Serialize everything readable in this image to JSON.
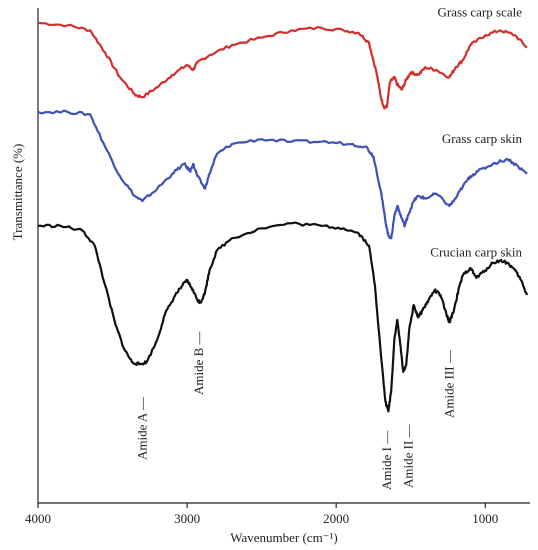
{
  "chart_data": {
    "type": "line",
    "title": "",
    "xlabel": "Wavenumber (cm⁻¹)",
    "ylabel": "Transmittance (%)",
    "xlim": [
      4000,
      700
    ],
    "x_reversed": true,
    "xticks": [
      4000,
      3000,
      2000,
      1000
    ],
    "grid": false,
    "legend": "labels placed at right end of each trace",
    "y_units": "relative transmittance, offset per trace, no numeric scale shown",
    "series": [
      {
        "name": "Grass carp scale",
        "color": "#d32f2f",
        "points": [
          [
            4000,
            0.97
          ],
          [
            3800,
            0.965
          ],
          [
            3650,
            0.955
          ],
          [
            3550,
            0.91
          ],
          [
            3450,
            0.86
          ],
          [
            3350,
            0.825
          ],
          [
            3300,
            0.82
          ],
          [
            3200,
            0.84
          ],
          [
            3100,
            0.865
          ],
          [
            3000,
            0.885
          ],
          [
            2960,
            0.875
          ],
          [
            2930,
            0.89
          ],
          [
            2850,
            0.905
          ],
          [
            2700,
            0.925
          ],
          [
            2500,
            0.94
          ],
          [
            2300,
            0.955
          ],
          [
            2100,
            0.96
          ],
          [
            1950,
            0.955
          ],
          [
            1850,
            0.95
          ],
          [
            1780,
            0.93
          ],
          [
            1730,
            0.87
          ],
          [
            1700,
            0.82
          ],
          [
            1680,
            0.8
          ],
          [
            1660,
            0.8
          ],
          [
            1640,
            0.85
          ],
          [
            1610,
            0.86
          ],
          [
            1590,
            0.845
          ],
          [
            1560,
            0.835
          ],
          [
            1530,
            0.855
          ],
          [
            1500,
            0.87
          ],
          [
            1450,
            0.865
          ],
          [
            1400,
            0.88
          ],
          [
            1330,
            0.875
          ],
          [
            1240,
            0.86
          ],
          [
            1200,
            0.88
          ],
          [
            1150,
            0.895
          ],
          [
            1100,
            0.925
          ],
          [
            1000,
            0.945
          ],
          [
            900,
            0.955
          ],
          [
            800,
            0.945
          ],
          [
            720,
            0.92
          ]
        ]
      },
      {
        "name": "Grass carp skin",
        "color": "#3f51b5",
        "points": [
          [
            4000,
            0.79
          ],
          [
            3800,
            0.79
          ],
          [
            3650,
            0.785
          ],
          [
            3550,
            0.72
          ],
          [
            3450,
            0.66
          ],
          [
            3350,
            0.62
          ],
          [
            3300,
            0.61
          ],
          [
            3200,
            0.635
          ],
          [
            3100,
            0.665
          ],
          [
            3020,
            0.685
          ],
          [
            2980,
            0.67
          ],
          [
            2960,
            0.685
          ],
          [
            2930,
            0.66
          ],
          [
            2880,
            0.635
          ],
          [
            2850,
            0.665
          ],
          [
            2800,
            0.705
          ],
          [
            2700,
            0.725
          ],
          [
            2500,
            0.735
          ],
          [
            2300,
            0.73
          ],
          [
            2100,
            0.73
          ],
          [
            1900,
            0.725
          ],
          [
            1800,
            0.72
          ],
          [
            1750,
            0.7
          ],
          [
            1700,
            0.63
          ],
          [
            1670,
            0.57
          ],
          [
            1650,
            0.54
          ],
          [
            1630,
            0.535
          ],
          [
            1610,
            0.58
          ],
          [
            1590,
            0.6
          ],
          [
            1560,
            0.575
          ],
          [
            1540,
            0.56
          ],
          [
            1520,
            0.58
          ],
          [
            1480,
            0.61
          ],
          [
            1450,
            0.62
          ],
          [
            1400,
            0.615
          ],
          [
            1330,
            0.625
          ],
          [
            1240,
            0.6
          ],
          [
            1200,
            0.615
          ],
          [
            1150,
            0.64
          ],
          [
            1100,
            0.66
          ],
          [
            1050,
            0.67
          ],
          [
            950,
            0.685
          ],
          [
            850,
            0.695
          ],
          [
            780,
            0.68
          ],
          [
            720,
            0.665
          ]
        ]
      },
      {
        "name": "Crucian carp skin",
        "color": "#111111",
        "points": [
          [
            4000,
            0.56
          ],
          [
            3850,
            0.56
          ],
          [
            3700,
            0.55
          ],
          [
            3620,
            0.52
          ],
          [
            3550,
            0.44
          ],
          [
            3480,
            0.36
          ],
          [
            3420,
            0.31
          ],
          [
            3370,
            0.285
          ],
          [
            3320,
            0.28
          ],
          [
            3270,
            0.285
          ],
          [
            3200,
            0.33
          ],
          [
            3150,
            0.38
          ],
          [
            3080,
            0.42
          ],
          [
            3030,
            0.44
          ],
          [
            3000,
            0.45
          ],
          [
            2970,
            0.435
          ],
          [
            2930,
            0.41
          ],
          [
            2910,
            0.405
          ],
          [
            2880,
            0.425
          ],
          [
            2850,
            0.47
          ],
          [
            2800,
            0.51
          ],
          [
            2700,
            0.535
          ],
          [
            2500,
            0.555
          ],
          [
            2300,
            0.565
          ],
          [
            2100,
            0.56
          ],
          [
            1950,
            0.555
          ],
          [
            1850,
            0.545
          ],
          [
            1780,
            0.52
          ],
          [
            1740,
            0.44
          ],
          [
            1700,
            0.3
          ],
          [
            1670,
            0.205
          ],
          [
            1650,
            0.185
          ],
          [
            1630,
            0.23
          ],
          [
            1610,
            0.33
          ],
          [
            1590,
            0.37
          ],
          [
            1570,
            0.32
          ],
          [
            1550,
            0.265
          ],
          [
            1530,
            0.28
          ],
          [
            1510,
            0.35
          ],
          [
            1480,
            0.4
          ],
          [
            1450,
            0.375
          ],
          [
            1420,
            0.39
          ],
          [
            1380,
            0.41
          ],
          [
            1340,
            0.43
          ],
          [
            1300,
            0.42
          ],
          [
            1260,
            0.38
          ],
          [
            1240,
            0.365
          ],
          [
            1210,
            0.39
          ],
          [
            1180,
            0.43
          ],
          [
            1150,
            0.46
          ],
          [
            1100,
            0.475
          ],
          [
            1060,
            0.455
          ],
          [
            1000,
            0.47
          ],
          [
            950,
            0.485
          ],
          [
            900,
            0.49
          ],
          [
            850,
            0.485
          ],
          [
            800,
            0.47
          ],
          [
            760,
            0.45
          ],
          [
            720,
            0.42
          ]
        ]
      }
    ],
    "annotations": [
      {
        "label": "Amide A",
        "x": 3300
      },
      {
        "label": "Amide B",
        "x": 2920
      },
      {
        "label": "Amide I",
        "x": 1650
      },
      {
        "label": "Amide II",
        "x": 1540
      },
      {
        "label": "Amide III",
        "x": 1240
      }
    ]
  }
}
